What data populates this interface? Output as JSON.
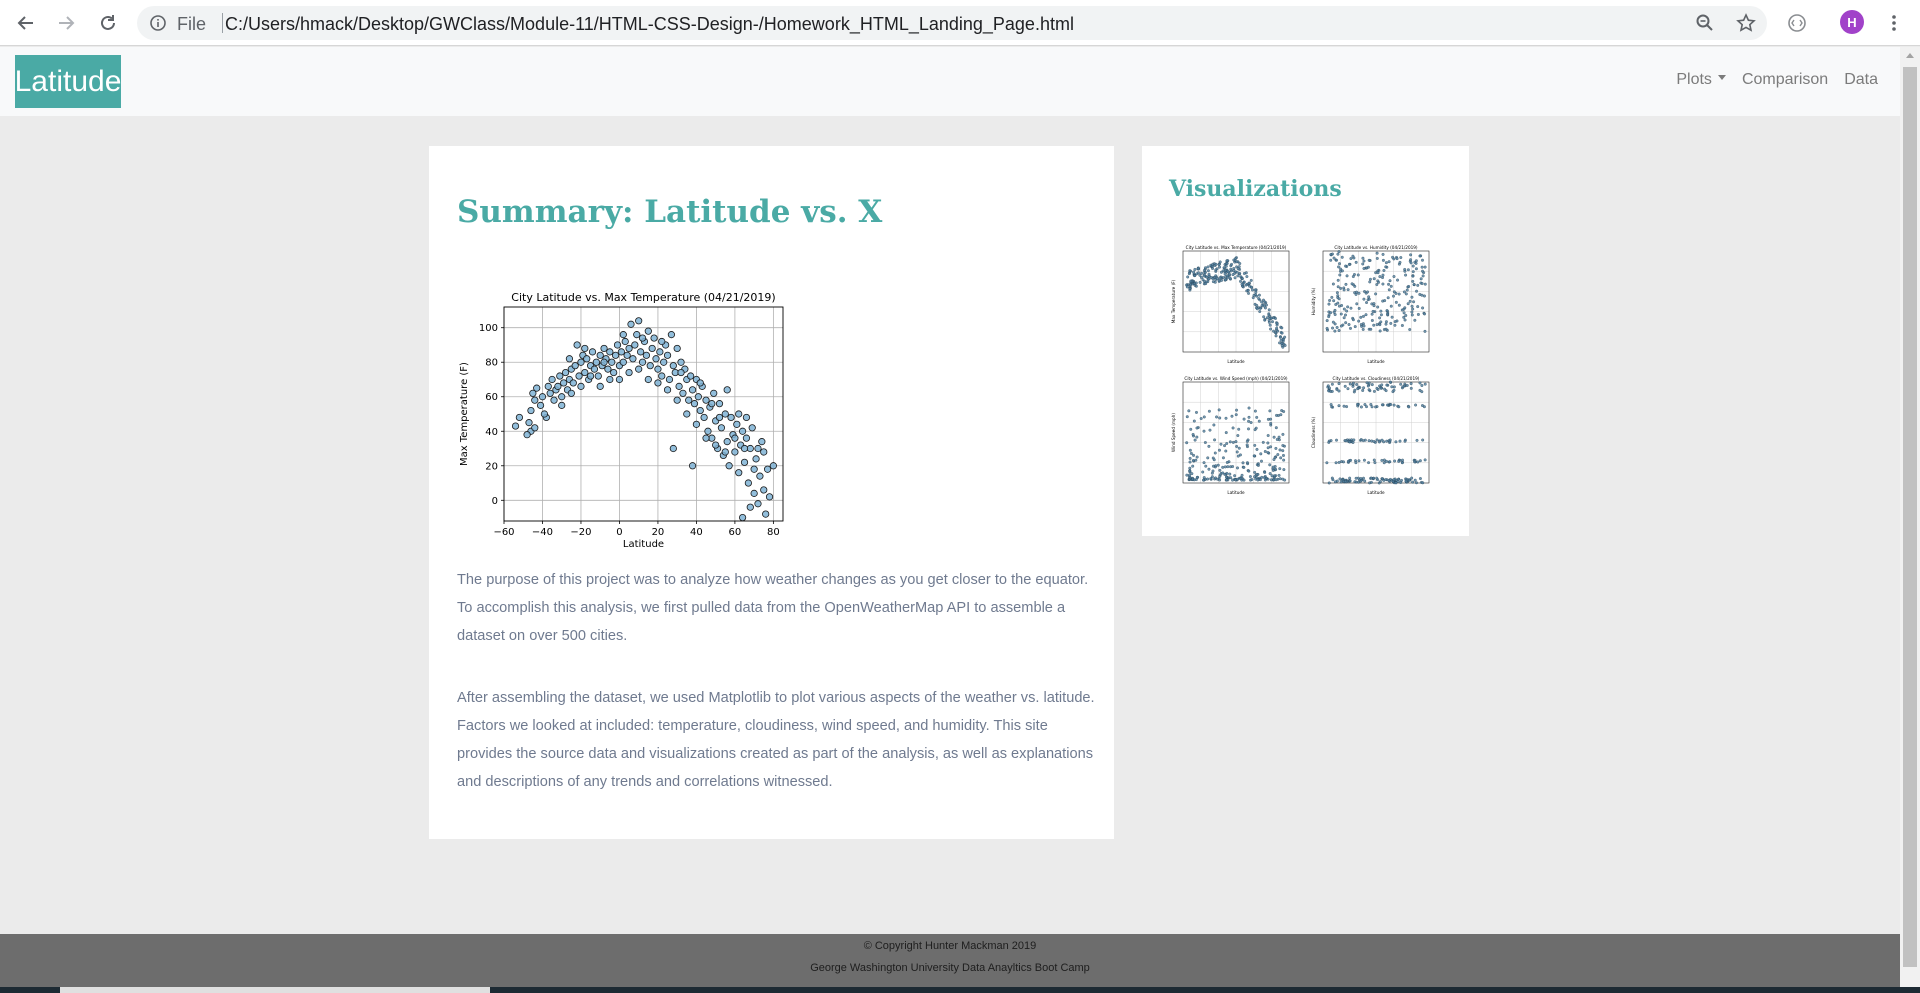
{
  "browser": {
    "scheme": "File",
    "url": "C:/Users/hmack/Desktop/GWClass/Module-11/HTML-CSS-Design-/Homework_HTML_Landing_Page.html",
    "avatar_initial": "H"
  },
  "navbar": {
    "brand": "Latitude",
    "links": [
      "Plots",
      "Comparison",
      "Data"
    ]
  },
  "main": {
    "title": "Summary: Latitude vs. X",
    "paragraph1": "The purpose of this project was to analyze how weather changes as you get closer to the equator. To accomplish this analysis, we first pulled data from the OpenWeatherMap API to assemble a dataset on over 500 cities.",
    "paragraph2": "After assembling the dataset, we used Matplotlib to plot various aspects of the weather vs. latitude. Factors we looked at included: temperature, cloudiness, wind speed, and humidity. This site provides the source data and visualizations created as part of the analysis, as well as explanations and descriptions of any trends and correlations witnessed."
  },
  "sidebar": {
    "title": "Visualizations"
  },
  "chart_data": [
    {
      "type": "scatter",
      "title": "City Latitude vs. Max Temperature (04/21/2019)",
      "xlabel": "Latitude",
      "ylabel": "Max Temperature (F)",
      "xlim": [
        -60,
        85
      ],
      "ylim": [
        -12,
        112
      ],
      "xticks": [
        -60,
        -40,
        -20,
        0,
        20,
        40,
        60,
        80
      ],
      "yticks": [
        0,
        20,
        40,
        60,
        80,
        100
      ],
      "xtick_labels": [
        "−60",
        "−40",
        "−20",
        "0",
        "20",
        "40",
        "60",
        "80"
      ],
      "grid": true,
      "points": [
        [
          -54,
          43
        ],
        [
          -52,
          48
        ],
        [
          -47,
          45
        ],
        [
          -46,
          40
        ],
        [
          -46,
          52
        ],
        [
          -45,
          62
        ],
        [
          -44,
          58
        ],
        [
          -43,
          65
        ],
        [
          -41,
          55
        ],
        [
          -40,
          60
        ],
        [
          -38,
          48
        ],
        [
          -37,
          66
        ],
        [
          -36,
          62
        ],
        [
          -35,
          70
        ],
        [
          -34,
          58
        ],
        [
          -33,
          64
        ],
        [
          -32,
          66
        ],
        [
          -31,
          72
        ],
        [
          -30,
          60
        ],
        [
          -29,
          68
        ],
        [
          -28,
          74
        ],
        [
          -27,
          64
        ],
        [
          -26,
          70
        ],
        [
          -25,
          76
        ],
        [
          -24,
          68
        ],
        [
          -23,
          78
        ],
        [
          -22,
          90
        ],
        [
          -21,
          72
        ],
        [
          -20,
          80
        ],
        [
          -19,
          84
        ],
        [
          -18,
          74
        ],
        [
          -17,
          82
        ],
        [
          -16,
          70
        ],
        [
          -15,
          78
        ],
        [
          -14,
          86
        ],
        [
          -13,
          76
        ],
        [
          -12,
          80
        ],
        [
          -11,
          72
        ],
        [
          -10,
          84
        ],
        [
          -9,
          78
        ],
        [
          -8,
          88
        ],
        [
          -7,
          82
        ],
        [
          -6,
          76
        ],
        [
          -5,
          86
        ],
        [
          -4,
          80
        ],
        [
          -3,
          74
        ],
        [
          -2,
          84
        ],
        [
          -1,
          90
        ],
        [
          0,
          78
        ],
        [
          1,
          86
        ],
        [
          2,
          80
        ],
        [
          3,
          92
        ],
        [
          4,
          84
        ],
        [
          5,
          88
        ],
        [
          6,
          102
        ],
        [
          7,
          82
        ],
        [
          8,
          90
        ],
        [
          9,
          96
        ],
        [
          10,
          104
        ],
        [
          11,
          86
        ],
        [
          12,
          80
        ],
        [
          13,
          92
        ],
        [
          14,
          84
        ],
        [
          15,
          98
        ],
        [
          16,
          78
        ],
        [
          17,
          88
        ],
        [
          18,
          94
        ],
        [
          19,
          82
        ],
        [
          20,
          76
        ],
        [
          21,
          86
        ],
        [
          22,
          72
        ],
        [
          23,
          80
        ],
        [
          24,
          90
        ],
        [
          25,
          84
        ],
        [
          26,
          70
        ],
        [
          27,
          96
        ],
        [
          28,
          78
        ],
        [
          29,
          74
        ],
        [
          30,
          88
        ],
        [
          31,
          66
        ],
        [
          32,
          80
        ],
        [
          33,
          62
        ],
        [
          34,
          76
        ],
        [
          35,
          70
        ],
        [
          36,
          58
        ],
        [
          37,
          72
        ],
        [
          38,
          64
        ],
        [
          39,
          56
        ],
        [
          40,
          70
        ],
        [
          41,
          60
        ],
        [
          42,
          52
        ],
        [
          43,
          66
        ],
        [
          44,
          48
        ],
        [
          45,
          58
        ],
        [
          46,
          40
        ],
        [
          47,
          54
        ],
        [
          48,
          36
        ],
        [
          49,
          62
        ],
        [
          50,
          46
        ],
        [
          51,
          30
        ],
        [
          52,
          56
        ],
        [
          53,
          42
        ],
        [
          54,
          26
        ],
        [
          55,
          50
        ],
        [
          56,
          34
        ],
        [
          57,
          20
        ],
        [
          58,
          48
        ],
        [
          59,
          38
        ],
        [
          60,
          28
        ],
        [
          61,
          44
        ],
        [
          62,
          16
        ],
        [
          63,
          32
        ],
        [
          64,
          40
        ],
        [
          65,
          22
        ],
        [
          66,
          36
        ],
        [
          67,
          10
        ],
        [
          68,
          30
        ],
        [
          69,
          42
        ],
        [
          70,
          4
        ],
        [
          71,
          24
        ],
        [
          72,
          -2
        ],
        [
          73,
          14
        ],
        [
          74,
          34
        ],
        [
          75,
          6
        ],
        [
          76,
          -8
        ],
        [
          77,
          18
        ],
        [
          80,
          20
        ],
        [
          -44,
          42
        ],
        [
          -39,
          50
        ],
        [
          -30,
          55
        ],
        [
          -25,
          62
        ],
        [
          -20,
          66
        ],
        [
          -15,
          72
        ],
        [
          -10,
          66
        ],
        [
          -5,
          70
        ],
        [
          0,
          70
        ],
        [
          5,
          74
        ],
        [
          10,
          76
        ],
        [
          15,
          70
        ],
        [
          20,
          68
        ],
        [
          25,
          64
        ],
        [
          30,
          58
        ],
        [
          35,
          50
        ],
        [
          40,
          44
        ],
        [
          45,
          36
        ],
        [
          50,
          32
        ],
        [
          55,
          28
        ],
        [
          60,
          36
        ],
        [
          65,
          30
        ],
        [
          70,
          18
        ],
        [
          75,
          28
        ],
        [
          -48,
          38
        ],
        [
          -26,
          82
        ],
        [
          -18,
          88
        ],
        [
          -8,
          80
        ],
        [
          2,
          96
        ],
        [
          12,
          94
        ],
        [
          22,
          92
        ],
        [
          32,
          74
        ],
        [
          42,
          68
        ],
        [
          52,
          48
        ],
        [
          62,
          50
        ],
        [
          72,
          30
        ],
        [
          78,
          2
        ],
        [
          68,
          -4
        ],
        [
          64,
          -10
        ],
        [
          38,
          20
        ],
        [
          28,
          30
        ],
        [
          48,
          56
        ],
        [
          56,
          64
        ],
        [
          66,
          48
        ]
      ]
    },
    {
      "type": "scatter",
      "title": "City Latitude vs. Max Temperature (04/21/2019)",
      "xlabel": "Latitude",
      "ylabel": "Max Temperature (F)",
      "xlim": [
        -60,
        85
      ],
      "ylim": [
        -12,
        112
      ],
      "thumbnail": true
    },
    {
      "type": "scatter",
      "title": "City Latitude vs. Humidity (04/21/2019)",
      "xlabel": "Latitude",
      "ylabel": "Humidity (%)",
      "xlim": [
        -60,
        85
      ],
      "ylim": [
        0,
        100
      ],
      "thumbnail": true
    },
    {
      "type": "scatter",
      "title": "City Latitude vs. Wind Speed (mph) (04/21/2019)",
      "xlabel": "Latitude",
      "ylabel": "Wind Speed (mph)",
      "xlim": [
        -60,
        85
      ],
      "ylim": [
        0,
        35
      ],
      "thumbnail": true
    },
    {
      "type": "scatter",
      "title": "City Latitude vs. Cloudiness (04/21/2019)",
      "xlabel": "Latitude",
      "ylabel": "Cloudiness (%)",
      "xlim": [
        -60,
        85
      ],
      "ylim": [
        0,
        100
      ],
      "thumbnail": true
    }
  ],
  "footer": {
    "line1": "© Copyright Hunter Mackman 2019",
    "line2": "George Washington University Data Anayltics Boot Camp"
  }
}
